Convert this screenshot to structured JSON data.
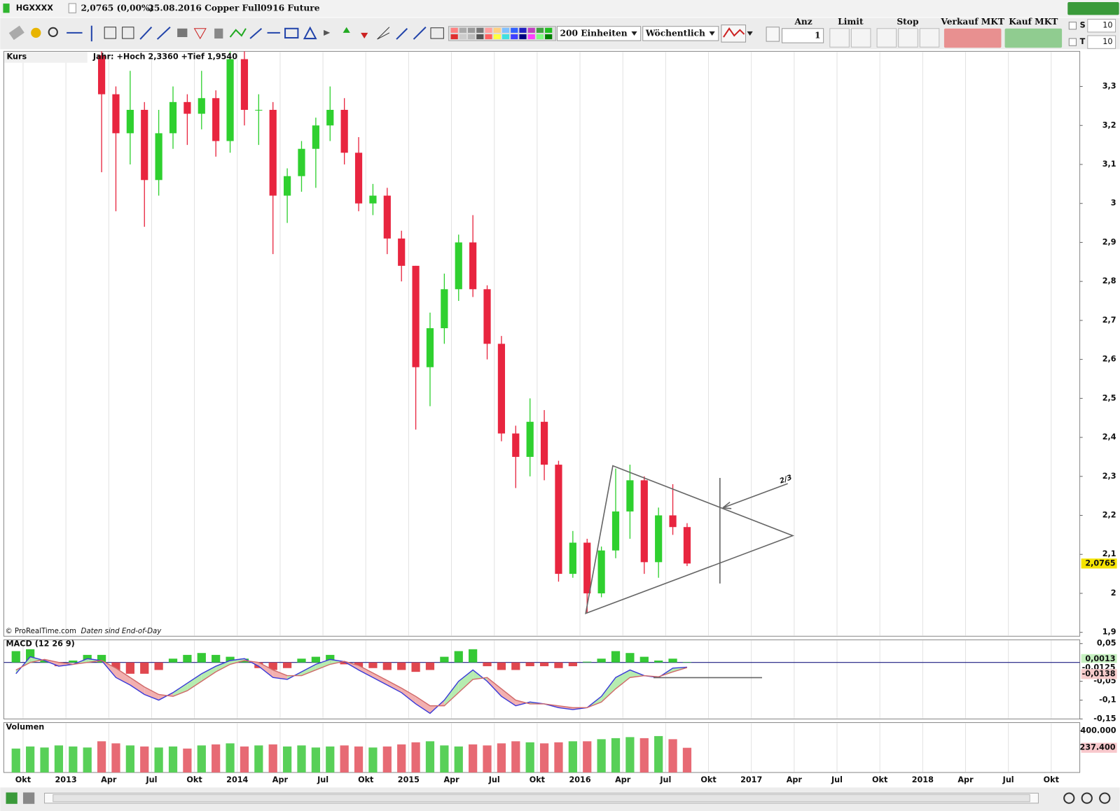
{
  "header": {
    "symbol": "HGXXXX",
    "quote": "2,0765 (0,00%)",
    "description": "25.08.2016 Copper Full0916 Future"
  },
  "toolbar": {
    "units": "200 Einheiten",
    "period": "Wöchentlich",
    "anz_label": "Anz",
    "anz_value": "1",
    "limit": "Limit",
    "stop": "Stop",
    "sell": "Verkauf MKT",
    "buy": "Kauf MKT",
    "s_label": "S",
    "s_value": "10",
    "t_label": "T",
    "t_value": "10"
  },
  "chart_data": [
    {
      "type": "candlestick",
      "title": "Kurs",
      "subtitle": "Jahr: +Hoch 2,3360 +Tief 1,9540",
      "annotations": {
        "source": "© ProRealTime.com",
        "note": "Daten sind End-of-Day",
        "ratio": "2/3"
      },
      "x": [
        "2013-03",
        "2013-04",
        "2013-05",
        "2013-06",
        "2013-07",
        "2013-08",
        "2013-09",
        "2013-10",
        "2013-11",
        "2013-12",
        "2014-01",
        "2014-02",
        "2014-03",
        "2014-04",
        "2014-05",
        "2014-06",
        "2014-07",
        "2014-08",
        "2014-09",
        "2014-10",
        "2014-11",
        "2014-12",
        "2015-01",
        "2015-02",
        "2015-03",
        "2015-04",
        "2015-05",
        "2015-06",
        "2015-07",
        "2015-08",
        "2015-09",
        "2015-10",
        "2015-11",
        "2015-12",
        "2016-01",
        "2016-02",
        "2016-03",
        "2016-04",
        "2016-05",
        "2016-06",
        "2016-07",
        "2016-08"
      ],
      "open": [
        3.38,
        3.28,
        3.18,
        3.24,
        3.06,
        3.18,
        3.26,
        3.23,
        3.27,
        3.16,
        3.37,
        3.24,
        3.24,
        3.02,
        3.07,
        3.14,
        3.2,
        3.24,
        3.13,
        3.0,
        3.02,
        2.91,
        2.84,
        2.58,
        2.68,
        2.78,
        2.9,
        2.78,
        2.64,
        2.41,
        2.35,
        2.44,
        2.33,
        2.05,
        2.13,
        2.0,
        2.11,
        2.21,
        2.29,
        2.08,
        2.2,
        2.17
      ],
      "high": [
        3.39,
        3.3,
        3.34,
        3.26,
        3.24,
        3.3,
        3.28,
        3.34,
        3.29,
        3.39,
        3.39,
        3.28,
        3.26,
        3.09,
        3.16,
        3.22,
        3.3,
        3.27,
        3.17,
        3.05,
        3.04,
        2.93,
        2.84,
        2.72,
        2.82,
        2.92,
        2.97,
        2.79,
        2.66,
        2.43,
        2.5,
        2.47,
        2.34,
        2.16,
        2.14,
        2.12,
        2.32,
        2.33,
        2.3,
        2.22,
        2.28,
        2.18
      ],
      "low": [
        3.08,
        2.98,
        3.1,
        2.94,
        3.02,
        3.14,
        3.15,
        3.19,
        3.12,
        3.13,
        3.2,
        3.15,
        2.87,
        2.95,
        3.03,
        3.04,
        3.16,
        3.1,
        2.98,
        2.97,
        2.87,
        2.8,
        2.42,
        2.48,
        2.64,
        2.75,
        2.76,
        2.6,
        2.39,
        2.27,
        2.3,
        2.29,
        2.03,
        2.04,
        1.95,
        1.99,
        2.09,
        2.14,
        2.05,
        2.04,
        2.15,
        2.07
      ],
      "close": [
        3.28,
        3.18,
        3.24,
        3.06,
        3.18,
        3.26,
        3.23,
        3.27,
        3.16,
        3.37,
        3.24,
        3.24,
        3.02,
        3.07,
        3.14,
        3.2,
        3.24,
        3.13,
        3.0,
        3.02,
        2.91,
        2.84,
        2.58,
        2.68,
        2.78,
        2.9,
        2.78,
        2.64,
        2.41,
        2.35,
        2.44,
        2.33,
        2.05,
        2.13,
        2.0,
        2.11,
        2.21,
        2.29,
        2.08,
        2.2,
        2.17,
        2.0765
      ],
      "up_color": "#2fd02f",
      "down_color": "#e8253f",
      "last_price_label": {
        "value": 2.0765,
        "label": "2,0765"
      },
      "xlim": [
        "2012-09",
        "2018-12"
      ],
      "ylim": [
        1.89,
        3.39
      ],
      "yticks": [
        {
          "value": 1.9,
          "label": "1,9"
        },
        2,
        {
          "value": 2.1,
          "label": "2,1"
        },
        {
          "value": 2.2,
          "label": "2,2"
        },
        {
          "value": 2.3,
          "label": "2,3"
        },
        {
          "value": 2.4,
          "label": "2,4"
        },
        {
          "value": 2.5,
          "label": "2,5"
        },
        {
          "value": 2.6,
          "label": "2,6"
        },
        {
          "value": 2.7,
          "label": "2,7"
        },
        {
          "value": 2.8,
          "label": "2,8"
        },
        {
          "value": 2.9,
          "label": "2,9"
        },
        3,
        {
          "value": 3.1,
          "label": "3,1"
        },
        {
          "value": 3.2,
          "label": "3,2"
        },
        {
          "value": 3.3,
          "label": "3,3"
        }
      ]
    },
    {
      "type": "macd",
      "title": "MACD (12 26 9)",
      "x": [
        "2012-09",
        "2012-10",
        "2012-11",
        "2012-12",
        "2013-01",
        "2013-02",
        "2013-03",
        "2013-04",
        "2013-05",
        "2013-06",
        "2013-07",
        "2013-08",
        "2013-09",
        "2013-10",
        "2013-11",
        "2013-12",
        "2014-01",
        "2014-02",
        "2014-03",
        "2014-04",
        "2014-05",
        "2014-06",
        "2014-07",
        "2014-08",
        "2014-09",
        "2014-10",
        "2014-11",
        "2014-12",
        "2015-01",
        "2015-02",
        "2015-03",
        "2015-04",
        "2015-05",
        "2015-06",
        "2015-07",
        "2015-08",
        "2015-09",
        "2015-10",
        "2015-11",
        "2015-12",
        "2016-01",
        "2016-02",
        "2016-03",
        "2016-04",
        "2016-05",
        "2016-06",
        "2016-07",
        "2016-08"
      ],
      "series": [
        {
          "color": "#3a3ad8",
          "values": [
            -0.03,
            0.015,
            0.005,
            -0.01,
            -0.005,
            0.01,
            0.005,
            -0.04,
            -0.06,
            -0.085,
            -0.1,
            -0.08,
            -0.055,
            -0.03,
            -0.01,
            0.005,
            0.01,
            -0.01,
            -0.04,
            -0.045,
            -0.025,
            -0.005,
            0.008,
            0.002,
            -0.02,
            -0.04,
            -0.06,
            -0.08,
            -0.11,
            -0.135,
            -0.1,
            -0.05,
            -0.02,
            -0.05,
            -0.09,
            -0.115,
            -0.105,
            -0.11,
            -0.12,
            -0.125,
            -0.12,
            -0.09,
            -0.04,
            -0.02,
            -0.035,
            -0.04,
            -0.015,
            -0.0125
          ],
          "last_label": "-0,0125"
        },
        {
          "color": "#d06a6a",
          "values": [
            -0.02,
            0.0,
            0.008,
            0.0,
            -0.005,
            0.0,
            0.005,
            -0.015,
            -0.04,
            -0.065,
            -0.085,
            -0.09,
            -0.075,
            -0.05,
            -0.025,
            -0.005,
            0.005,
            0.0,
            -0.02,
            -0.035,
            -0.035,
            -0.02,
            -0.005,
            0.003,
            -0.008,
            -0.028,
            -0.048,
            -0.068,
            -0.09,
            -0.115,
            -0.115,
            -0.08,
            -0.045,
            -0.04,
            -0.07,
            -0.1,
            -0.11,
            -0.11,
            -0.115,
            -0.12,
            -0.12,
            -0.105,
            -0.07,
            -0.04,
            -0.035,
            -0.038,
            -0.025,
            -0.0138
          ],
          "last_label": "-0,0138"
        }
      ],
      "histogram": {
        "up_color": "#35c935",
        "down_color": "#e0474f",
        "values": [
          0.03,
          0.035,
          0.005,
          -0.01,
          0.005,
          0.02,
          0.02,
          -0.02,
          -0.03,
          -0.03,
          -0.02,
          0.01,
          0.02,
          0.025,
          0.02,
          0.015,
          0.01,
          -0.015,
          -0.02,
          -0.015,
          0.01,
          0.015,
          0.02,
          -0.005,
          -0.015,
          -0.015,
          -0.02,
          -0.02,
          -0.025,
          -0.02,
          0.015,
          0.03,
          0.035,
          -0.01,
          -0.02,
          -0.02,
          -0.01,
          -0.01,
          -0.015,
          -0.01,
          0.002,
          0.01,
          0.03,
          0.025,
          0.015,
          0.005,
          0.01,
          0.0013
        ],
        "last_label": "0,0013"
      },
      "xlim": [
        "2012-09",
        "2018-12"
      ],
      "ylim": [
        -0.15,
        0.06
      ],
      "yticks": [
        {
          "value": 0.05,
          "label": "0,05"
        },
        {
          "value": -0.05,
          "label": "-0,05"
        },
        {
          "value": -0.1,
          "label": "-0,1"
        },
        {
          "value": -0.15,
          "label": "-0,15"
        }
      ]
    },
    {
      "type": "bar",
      "title": "Volumen",
      "x": [
        "2012-09",
        "2012-10",
        "2012-11",
        "2012-12",
        "2013-01",
        "2013-02",
        "2013-03",
        "2013-04",
        "2013-05",
        "2013-06",
        "2013-07",
        "2013-08",
        "2013-09",
        "2013-10",
        "2013-11",
        "2013-12",
        "2014-01",
        "2014-02",
        "2014-03",
        "2014-04",
        "2014-05",
        "2014-06",
        "2014-07",
        "2014-08",
        "2014-09",
        "2014-10",
        "2014-11",
        "2014-12",
        "2015-01",
        "2015-02",
        "2015-03",
        "2015-04",
        "2015-05",
        "2015-06",
        "2015-07",
        "2015-08",
        "2015-09",
        "2015-10",
        "2015-11",
        "2015-12",
        "2016-01",
        "2016-02",
        "2016-03",
        "2016-04",
        "2016-05",
        "2016-06",
        "2016-07",
        "2016-08"
      ],
      "values": [
        230000,
        250000,
        240000,
        260000,
        250000,
        240000,
        300000,
        280000,
        260000,
        250000,
        240000,
        250000,
        230000,
        260000,
        270000,
        280000,
        250000,
        260000,
        270000,
        250000,
        260000,
        240000,
        250000,
        260000,
        250000,
        240000,
        250000,
        270000,
        290000,
        300000,
        260000,
        250000,
        270000,
        260000,
        280000,
        300000,
        290000,
        280000,
        290000,
        300000,
        300000,
        320000,
        330000,
        340000,
        330000,
        350000,
        320000,
        237400
      ],
      "last_label": "237.400",
      "xlim": [
        "2012-09",
        "2018-12"
      ],
      "ylim": [
        0,
        480000
      ],
      "yticks": [
        {
          "value": 400000,
          "label": "400.000"
        }
      ],
      "grid": true,
      "xticks": [
        {
          "value": "2012-10",
          "label": "Okt"
        },
        {
          "value": "2013-01",
          "label": "2013"
        },
        {
          "value": "2013-04",
          "label": "Apr"
        },
        {
          "value": "2013-07",
          "label": "Jul"
        },
        {
          "value": "2013-10",
          "label": "Okt"
        },
        {
          "value": "2014-01",
          "label": "2014"
        },
        {
          "value": "2014-04",
          "label": "Apr"
        },
        {
          "value": "2014-07",
          "label": "Jul"
        },
        {
          "value": "2014-10",
          "label": "Okt"
        },
        {
          "value": "2015-01",
          "label": "2015"
        },
        {
          "value": "2015-04",
          "label": "Apr"
        },
        {
          "value": "2015-07",
          "label": "Jul"
        },
        {
          "value": "2015-10",
          "label": "Okt"
        },
        {
          "value": "2016-01",
          "label": "2016"
        },
        {
          "value": "2016-04",
          "label": "Apr"
        },
        {
          "value": "2016-07",
          "label": "Jul"
        },
        {
          "value": "2016-10",
          "label": "Okt"
        },
        {
          "value": "2017-01",
          "label": "2017"
        },
        {
          "value": "2017-04",
          "label": "Apr"
        },
        {
          "value": "2017-07",
          "label": "Jul"
        },
        {
          "value": "2017-10",
          "label": "Okt"
        },
        {
          "value": "2018-01",
          "label": "2018"
        },
        {
          "value": "2018-04",
          "label": "Apr"
        },
        {
          "value": "2018-07",
          "label": "Jul"
        },
        {
          "value": "2018-10",
          "label": "Okt"
        }
      ]
    }
  ]
}
